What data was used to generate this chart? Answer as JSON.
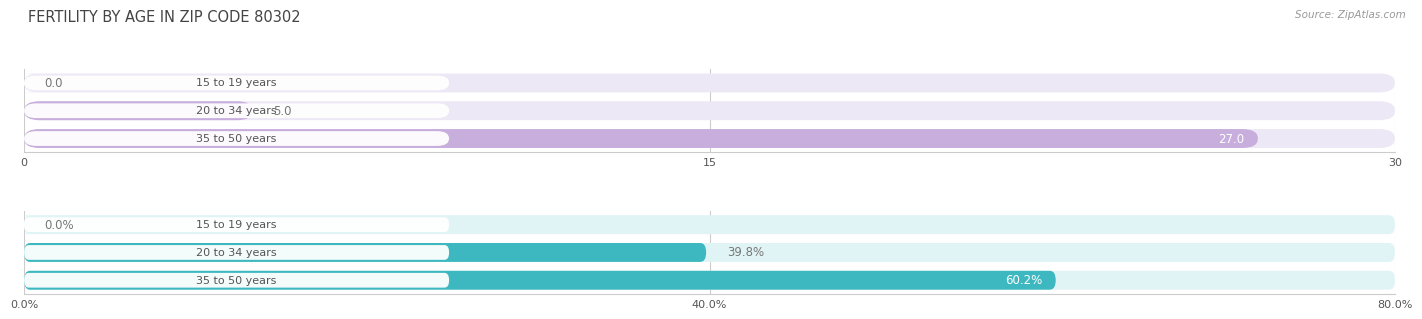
{
  "title": "FERTILITY BY AGE IN ZIP CODE 80302",
  "source": "Source: ZipAtlas.com",
  "top_bars": {
    "categories": [
      "15 to 19 years",
      "20 to 34 years",
      "35 to 50 years"
    ],
    "values": [
      0.0,
      5.0,
      27.0
    ],
    "xlim": [
      0,
      30
    ],
    "xticks": [
      0.0,
      15.0,
      30.0
    ],
    "bar_color": "#c8aedd",
    "bg_color": "#ede8f5"
  },
  "bottom_bars": {
    "categories": [
      "15 to 19 years",
      "20 to 34 years",
      "35 to 50 years"
    ],
    "values": [
      0.0,
      39.8,
      60.2
    ],
    "xlim": [
      0,
      80
    ],
    "xticks": [
      0.0,
      40.0,
      80.0
    ],
    "xtick_labels": [
      "0.0%",
      "40.0%",
      "80.0%"
    ],
    "bar_color": "#3db8c0",
    "bg_color": "#e0f4f5"
  },
  "label_pill_color": "#ffffff",
  "label_text_color": "#555555",
  "value_color_inside": "#ffffff",
  "value_color_outside": "#777777",
  "title_color": "#444444",
  "source_color": "#999999",
  "background": "#ffffff",
  "bar_height": 0.68,
  "title_fontsize": 10.5,
  "label_fontsize": 8.0,
  "value_fontsize": 8.5,
  "tick_fontsize": 8.0
}
